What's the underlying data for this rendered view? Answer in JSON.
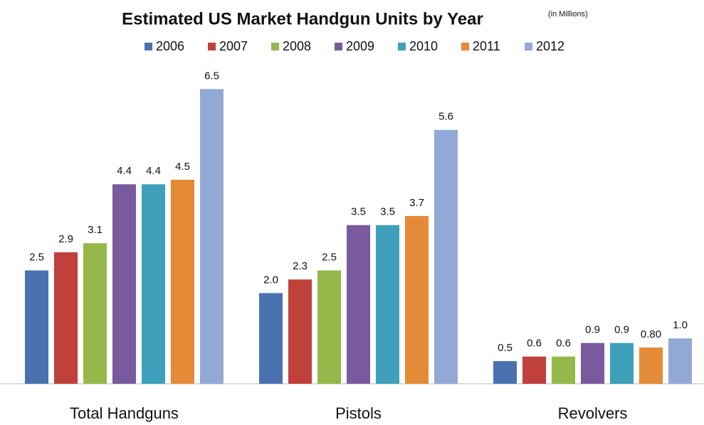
{
  "chart_data": {
    "type": "bar",
    "title": "Estimated US Market Handgun Units by Year",
    "subtitle": "(in Millions)",
    "categories": [
      "Total Handguns",
      "Pistols",
      "Revolvers"
    ],
    "series": [
      {
        "name": "2006",
        "color": "#4a72b0",
        "values": [
          2.5,
          2,
          0.5
        ],
        "value_labels": [
          "2.5",
          "2.0",
          "0.5"
        ]
      },
      {
        "name": "2007",
        "color": "#c0403c",
        "values": [
          2.9,
          2.3,
          0.6
        ],
        "value_labels": [
          "2.9",
          "2.3",
          "0.6"
        ]
      },
      {
        "name": "2008",
        "color": "#94b84a",
        "values": [
          3.1,
          2.5,
          0.6
        ],
        "value_labels": [
          "3.1",
          "2.5",
          "0.6"
        ]
      },
      {
        "name": "2009",
        "color": "#7a5a9e",
        "values": [
          4.4,
          3.5,
          0.9
        ],
        "value_labels": [
          "4.4",
          "3.5",
          "0.9"
        ]
      },
      {
        "name": "2010",
        "color": "#3fa0bb",
        "values": [
          4.4,
          3.5,
          0.9
        ],
        "value_labels": [
          "4.4",
          "3.5",
          "0.9"
        ]
      },
      {
        "name": "2011",
        "color": "#e58a37",
        "values": [
          4.5,
          3.7,
          0.8
        ],
        "value_labels": [
          "4.5",
          "3.7",
          "0.80"
        ]
      },
      {
        "name": "2012",
        "color": "#93a9d5",
        "values": [
          6.5,
          5.6,
          1
        ],
        "value_labels": [
          "6.5",
          "5.6",
          "1.0"
        ]
      }
    ]
  }
}
